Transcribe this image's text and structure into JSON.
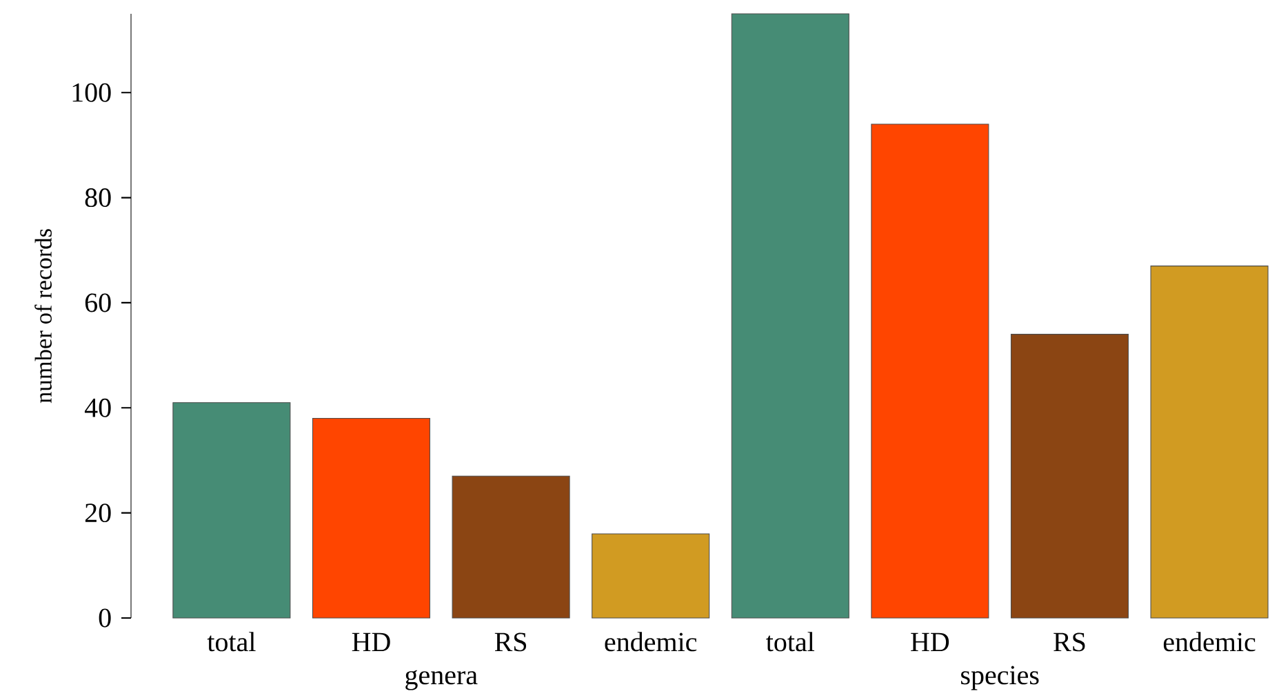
{
  "chart_data": {
    "type": "bar",
    "ylabel": "number of records",
    "categories": [
      "total",
      "HD",
      "RS",
      "endemic",
      "total",
      "HD",
      "RS",
      "endemic"
    ],
    "values": [
      41,
      38,
      27,
      16,
      115,
      94,
      54,
      67
    ],
    "colors": [
      "#468c75",
      "#ff4500",
      "#8b4513",
      "#d19b22",
      "#468c75",
      "#ff4500",
      "#8b4513",
      "#d19b22"
    ],
    "ylim": [
      0,
      115
    ],
    "yticks": [
      0,
      20,
      40,
      60,
      80,
      100
    ],
    "annotations": [
      "genera",
      "species"
    ]
  }
}
